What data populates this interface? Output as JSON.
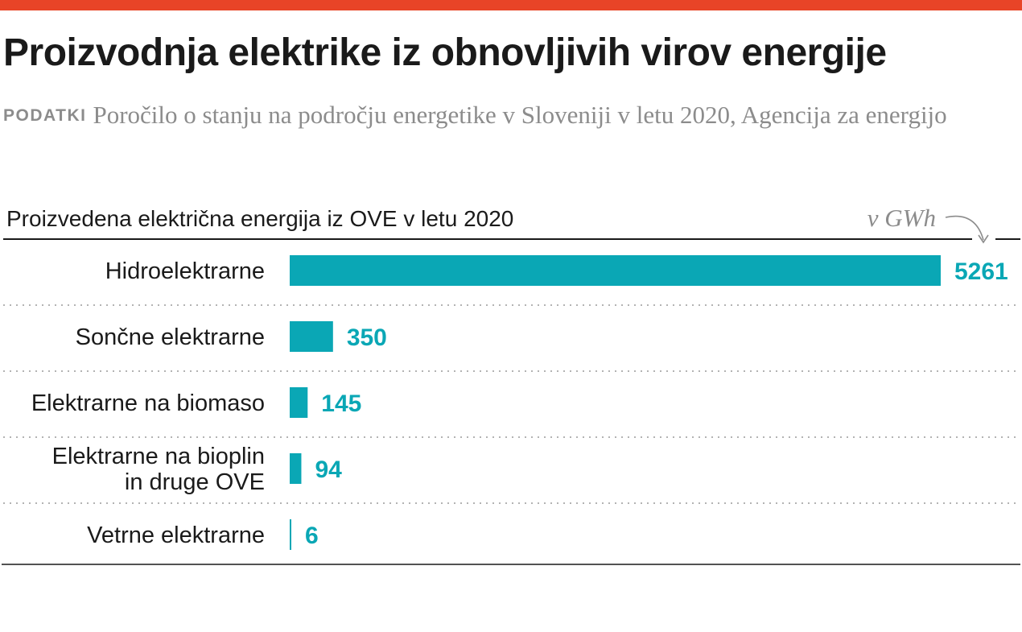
{
  "title": "Proizvodnja elektrike iz obnovljivih virov energije",
  "source": {
    "label": "PODATKI",
    "text": "Poročilo o stanju na področju energetike v Sloveniji v letu 2020, Agencija za energijo"
  },
  "colors": {
    "accent": "#e84427",
    "bar": "#0aa7b5",
    "muted": "#8c8c8c"
  },
  "chart_data": {
    "type": "bar",
    "orientation": "horizontal",
    "title": "Proizvedena električna energija iz OVE v letu 2020",
    "unit": "v GWh",
    "categories": [
      [
        "Hidroelektrarne"
      ],
      [
        "Sončne elektrarne"
      ],
      [
        "Elektrarne na biomaso"
      ],
      [
        "Elektrarne na bioplin",
        "in druge OVE"
      ],
      [
        "Vetrne elektrarne"
      ]
    ],
    "values": [
      5261,
      350,
      145,
      94,
      6
    ],
    "xlim": [
      0,
      5261
    ],
    "grid": false
  }
}
